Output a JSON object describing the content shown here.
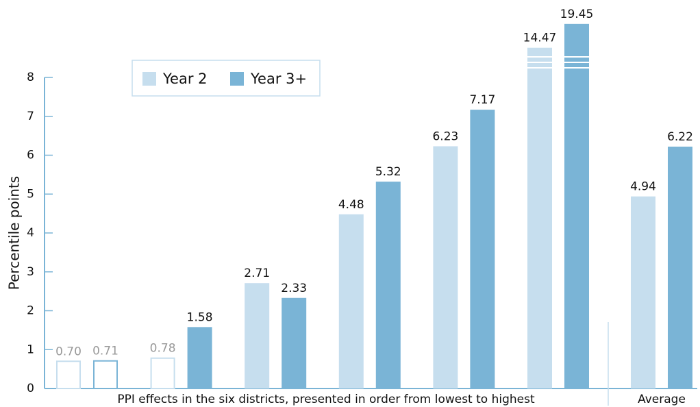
{
  "chart_data": {
    "type": "bar",
    "y_label": "Percentile points",
    "x_label": "PPI effects in the six districts, presented in order from lowest to highest",
    "categories": [
      null,
      null,
      null,
      null,
      null,
      null,
      "Average"
    ],
    "series": [
      {
        "name": "Year 2",
        "color": "#c6deee",
        "values": [
          0.7,
          0.78,
          2.71,
          4.48,
          6.23,
          14.47,
          4.94
        ],
        "value_labels": [
          "0.70",
          "0.78",
          "2.71",
          "4.48",
          "6.23",
          "14.47",
          "4.94"
        ],
        "outline": [
          true,
          true,
          false,
          false,
          false,
          false,
          false
        ]
      },
      {
        "name": "Year 3+",
        "color": "#7ab4d6",
        "values": [
          0.71,
          1.58,
          2.33,
          5.32,
          7.17,
          19.45,
          6.22
        ],
        "value_labels": [
          "0.71",
          "1.58",
          "2.33",
          "5.32",
          "7.17",
          "19.45",
          "6.22"
        ],
        "outline": [
          true,
          false,
          false,
          false,
          false,
          false,
          false
        ]
      }
    ],
    "ylim": [
      0,
      8
    ],
    "yticks": [
      0,
      1,
      2,
      3,
      4,
      5,
      6,
      7,
      8
    ],
    "legend": "top-left"
  }
}
